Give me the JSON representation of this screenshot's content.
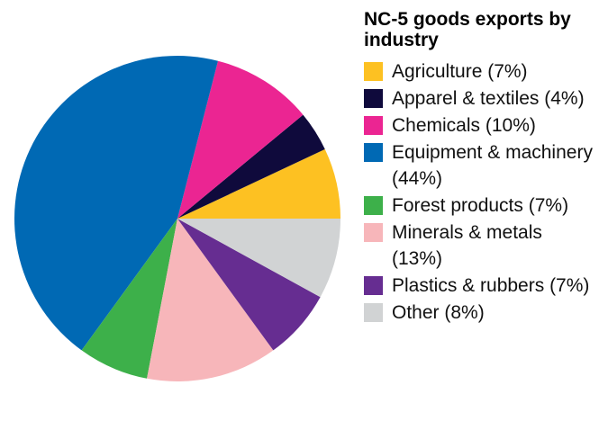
{
  "chart_data": {
    "type": "pie",
    "title": "NC-5 goods exports by industry",
    "start_angle_deg": 0,
    "direction": "counterclockwise",
    "legend_position": "right",
    "slices": [
      {
        "label": "Agriculture",
        "value": 7,
        "color": "#FDC122",
        "legend": "Agriculture (7%)"
      },
      {
        "label": "Apparel & textiles",
        "value": 4,
        "color": "#0F0A3C",
        "legend": "Apparel & textiles (4%)"
      },
      {
        "label": "Chemicals",
        "value": 10,
        "color": "#EB2592",
        "legend": "Chemicals (10%)"
      },
      {
        "label": "Equipment & machinery",
        "value": 44,
        "color": "#0069B4",
        "legend": "Equipment & machinery (44%)"
      },
      {
        "label": "Forest products",
        "value": 7,
        "color": "#3DB04A",
        "legend": "Forest products (7%)"
      },
      {
        "label": "Minerals & metals",
        "value": 13,
        "color": "#F7B6BA",
        "legend": "Minerals & metals (13%)"
      },
      {
        "label": "Plastics & rubbers",
        "value": 7,
        "color": "#662D91",
        "legend": "Plastics & rubbers (7%)"
      },
      {
        "label": "Other",
        "value": 8,
        "color": "#D1D3D4",
        "legend": "Other (8%)"
      }
    ]
  }
}
